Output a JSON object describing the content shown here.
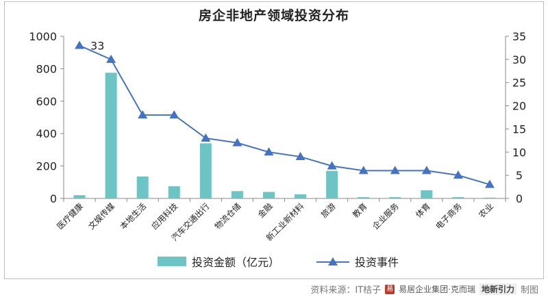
{
  "chart_data": {
    "type": "bar+line",
    "title": "房企非地产领域投资分布",
    "categories": [
      "医疗健康",
      "文娱传媒",
      "本地生活",
      "应用科技",
      "汽车交通出行",
      "物流仓储",
      "金融",
      "新工业新材料",
      "旅游",
      "教育",
      "企业服务",
      "体育",
      "电子商务",
      "农业"
    ],
    "series": [
      {
        "name": "投资金额（亿元）",
        "type": "bar",
        "axis": "left",
        "values": [
          20,
          775,
          135,
          75,
          340,
          45,
          40,
          25,
          170,
          8,
          8,
          50,
          8,
          5
        ],
        "color": "#6cc4c4"
      },
      {
        "name": "投资事件",
        "type": "line",
        "axis": "right",
        "values": [
          33,
          30,
          18,
          18,
          13,
          12,
          10,
          9,
          7,
          6,
          6,
          6,
          5,
          3
        ],
        "color": "#4472c4"
      }
    ],
    "y_left": {
      "min": 0,
      "max": 1000,
      "ticks": [
        "0",
        "200",
        "400",
        "600",
        "800",
        "1000"
      ]
    },
    "y_right": {
      "min": 0,
      "max": 35,
      "ticks": [
        "0",
        "5",
        "10",
        "15",
        "20",
        "25",
        "30",
        "35"
      ]
    },
    "annotations": [
      {
        "series": "投资事件",
        "index": 0,
        "text": "33"
      }
    ],
    "legend_position": "bottom",
    "grid": false
  },
  "footer": {
    "source": "资料来源：IT桔子",
    "logo_mark": "易",
    "org": "易居企业集团·克而瑞",
    "brand": "地新引力",
    "suffix": "制图"
  }
}
